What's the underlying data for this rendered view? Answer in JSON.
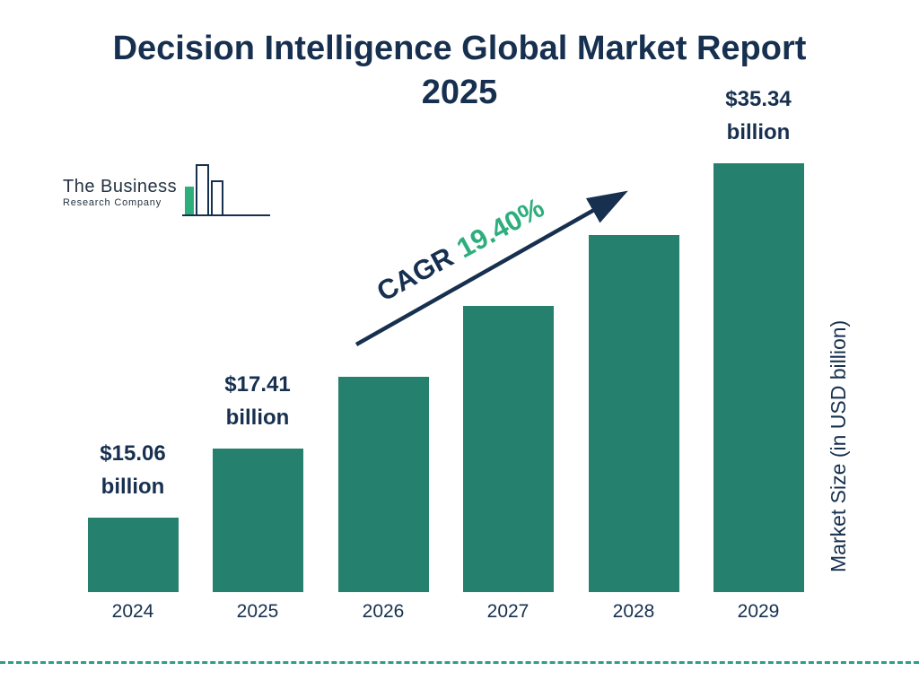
{
  "title": {
    "line1": "Decision Intelligence Global Market Report",
    "line2": "2025"
  },
  "logo": {
    "line1": "The Business",
    "line2": "Research Company"
  },
  "cagr": {
    "label": "CAGR",
    "value": "19.40%"
  },
  "y_axis_label": "Market Size (in USD billion)",
  "colors": {
    "bar": "#26806e",
    "navy": "#17304f",
    "green": "#2eae7d",
    "dashed_line": "#2a9d8f"
  },
  "chart_data": {
    "type": "bar",
    "title": "Decision Intelligence Global Market Report 2025",
    "categories": [
      "2024",
      "2025",
      "2026",
      "2027",
      "2028",
      "2029"
    ],
    "values": [
      15.06,
      17.41,
      20.79,
      24.82,
      29.64,
      35.34
    ],
    "value_labels": [
      "$15.06 billion",
      "$17.41 billion",
      null,
      null,
      null,
      "$35.34 billion"
    ],
    "bar_display_height_pct": [
      17.4,
      33.5,
      50.2,
      66.7,
      83.3,
      100
    ],
    "xlabel": "",
    "ylabel": "Market Size (in USD billion)",
    "annotation": "CAGR 19.40%",
    "legend": "none",
    "grid": "off"
  }
}
